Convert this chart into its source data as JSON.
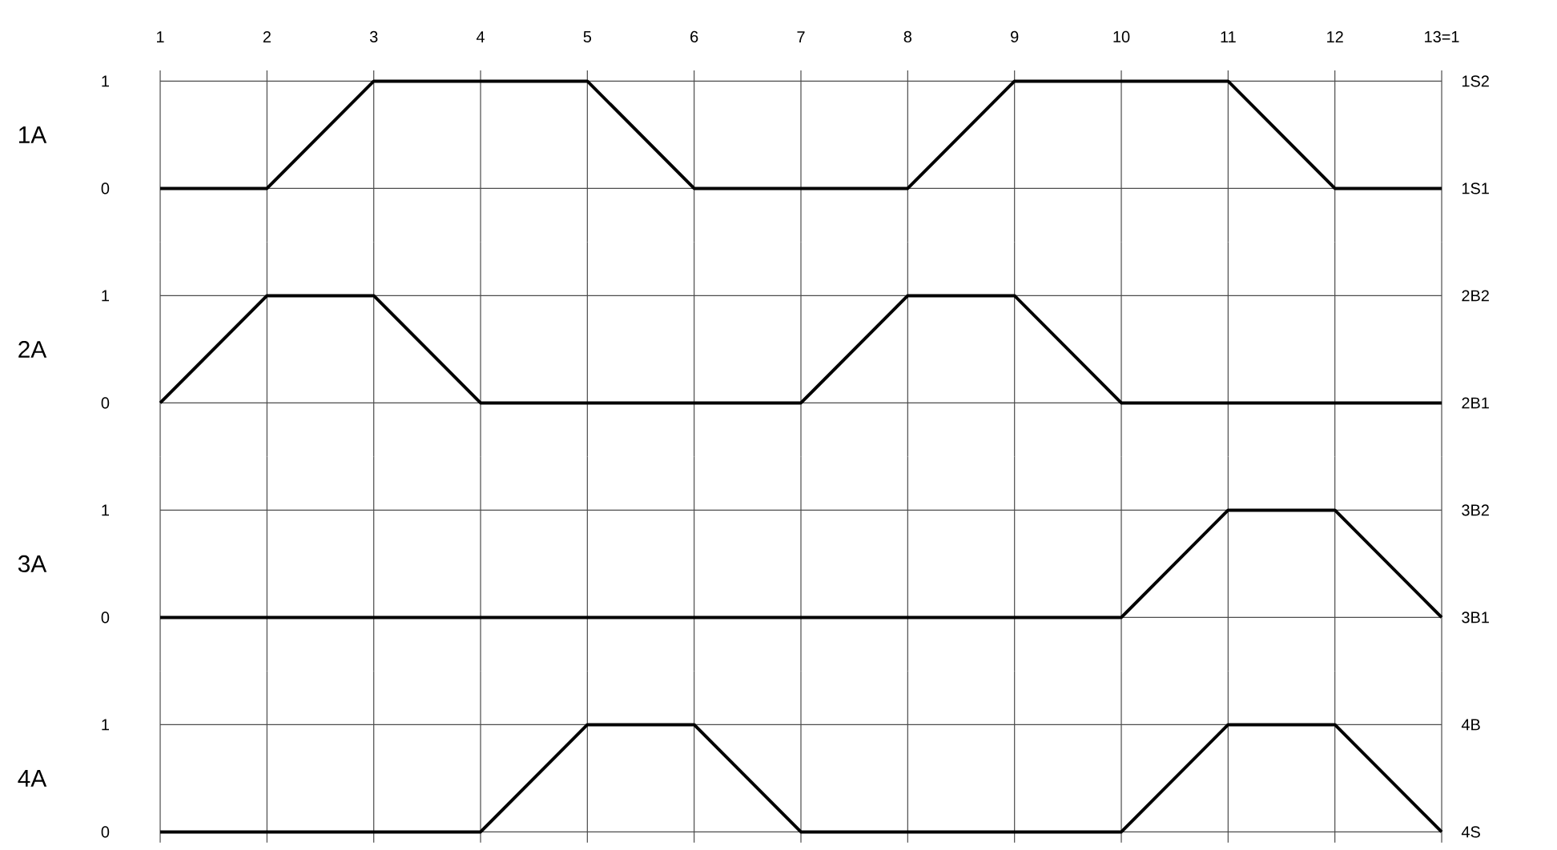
{
  "chart_data": [
    {
      "type": "line",
      "categories": [
        "1",
        "2",
        "3",
        "4",
        "5",
        "6",
        "7",
        "8",
        "9",
        "10",
        "11",
        "12",
        "13=1"
      ],
      "values": [
        0,
        0,
        1,
        1,
        1,
        0,
        0,
        0,
        1,
        1,
        1,
        0,
        0
      ],
      "color": "#000000",
      "ylabel": "1A",
      "ylim": [
        -0.5,
        1.1
      ],
      "yticks": [
        0,
        1
      ],
      "ref_lines": [
        {
          "axis": "y",
          "value": 1,
          "label": "1S2"
        },
        {
          "axis": "y",
          "value": 0,
          "label": "1S1"
        }
      ],
      "grid": "x"
    },
    {
      "type": "line",
      "categories": [
        null,
        null,
        null,
        null,
        null,
        null,
        null,
        null,
        null,
        null,
        null,
        null,
        null
      ],
      "values": [
        0,
        1,
        1,
        0,
        0,
        0,
        0,
        1,
        1,
        0,
        0,
        0,
        0
      ],
      "color": "#000000",
      "ylabel": "2A",
      "ylim": [
        -0.5,
        1.5
      ],
      "yticks": [
        0,
        1
      ],
      "ref_lines": [
        {
          "axis": "y",
          "value": 1,
          "label": "2B2"
        },
        {
          "axis": "y",
          "value": 0,
          "label": "2B1"
        }
      ],
      "grid": "x",
      "tick_labels": "y"
    },
    {
      "type": "line",
      "categories": [
        null,
        null,
        null,
        null,
        null,
        null,
        null,
        null,
        null,
        null,
        null,
        null,
        null
      ],
      "values": [
        0,
        0,
        0,
        0,
        0,
        0,
        0,
        0,
        0,
        0,
        1,
        1,
        0
      ],
      "color": "#000000",
      "ylabel": "3A",
      "ylim": [
        -0.5,
        1.5
      ],
      "yticks": [
        0,
        1
      ],
      "ref_lines": [
        {
          "axis": "y",
          "value": 1,
          "label": "3B2"
        },
        {
          "axis": "y",
          "value": 0,
          "label": "3B1"
        }
      ],
      "grid": "x",
      "tick_labels": "y"
    },
    {
      "type": "line",
      "categories": [
        null,
        null,
        null,
        null,
        null,
        null,
        null,
        null,
        null,
        null,
        null,
        null,
        null
      ],
      "values": [
        0,
        0,
        0,
        0,
        1,
        1,
        0,
        0,
        0,
        0,
        1,
        1,
        0
      ],
      "color": "#000000",
      "ylabel": "4A",
      "ylim": [
        -0.1,
        1.5
      ],
      "yticks": [
        0,
        1
      ],
      "ref_lines": [
        {
          "axis": "y",
          "value": 1,
          "label": "4B"
        },
        {
          "axis": "y",
          "value": 0,
          "label": "4S"
        }
      ],
      "grid": "x",
      "tick_labels": "y"
    }
  ]
}
